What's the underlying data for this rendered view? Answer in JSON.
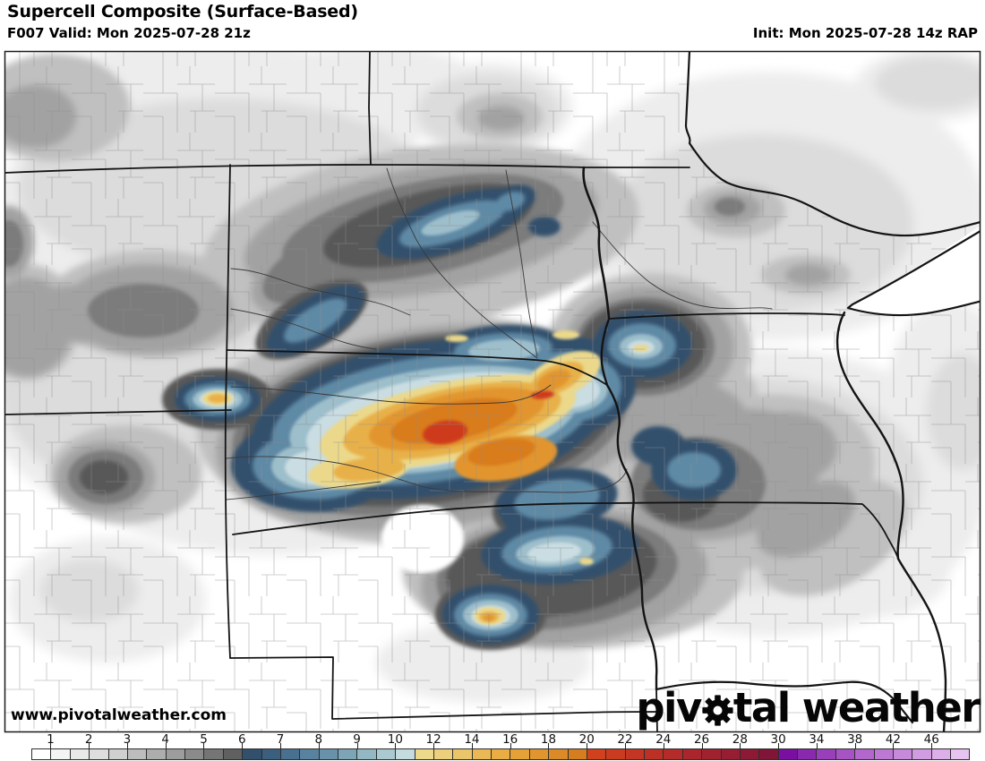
{
  "header": {
    "title": "Supercell Composite (Surface-Based)",
    "valid": "F007 Valid: Mon 2025-07-28 21z",
    "init": "Init: Mon 2025-07-28 14z RAP"
  },
  "watermark": "www.pivotalweather.com",
  "logo": {
    "part1": "piv",
    "part2": "tal weather",
    "gear_icon": "gear"
  },
  "colorbar": {
    "labels": [
      "1",
      "2",
      "3",
      "4",
      "5",
      "6",
      "7",
      "8",
      "9",
      "10",
      "12",
      "14",
      "16",
      "18",
      "20",
      "22",
      "24",
      "26",
      "28",
      "30",
      "34",
      "38",
      "42",
      "46"
    ],
    "cells": [
      "#ffffff",
      "#f4f4f4",
      "#e9e9e9",
      "#dedede",
      "#d0d0d0",
      "#bdbdbd",
      "#adadad",
      "#9d9d9d",
      "#8b8b8b",
      "#757575",
      "#606060",
      "#32506c",
      "#3c5f7e",
      "#49718f",
      "#58829e",
      "#6992aa",
      "#7da5b6",
      "#93b7c3",
      "#aac9d1",
      "#c4dbe0",
      "#ecd98b",
      "#ecd07b",
      "#ebc569",
      "#eab955",
      "#e9ad43",
      "#e5a138",
      "#e0952f",
      "#db8a27",
      "#d67d1f",
      "#d1411d",
      "#cb3b20",
      "#c43523",
      "#bc3026",
      "#b42b29",
      "#ab262c",
      "#a1222f",
      "#971e32",
      "#8c1a35",
      "#801537",
      "#7a0fa2",
      "#8a28ae",
      "#9a3fba",
      "#a753c4",
      "#b366cc",
      "#bd78d3",
      "#c78ada",
      "#d19ce1",
      "#dcafe8",
      "#e7c3ef"
    ],
    "border_color": "#2e2e2e"
  },
  "map": {
    "background": "#ffffff",
    "frame_color": "#1a1a1a",
    "palette": {
      "g1": "#ededed",
      "g2": "#dcdcdc",
      "g3": "#c0c0c0",
      "g4": "#a2a2a2",
      "g5": "#7c7c7c",
      "g6": "#585858",
      "navy": "#33506c",
      "b2": "#5e8aa6",
      "b3": "#9dbecb",
      "b4": "#c9dde2",
      "y1": "#ebd88b",
      "o1": "#e8b04a",
      "o2": "#e2952f",
      "o3": "#d87c1f",
      "red": "#ce3a1d",
      "state": "#141414",
      "county": "#8f8f8f",
      "river": "#3a3a3a",
      "frame": "#1a1a1a",
      "logo": "#060606"
    }
  }
}
